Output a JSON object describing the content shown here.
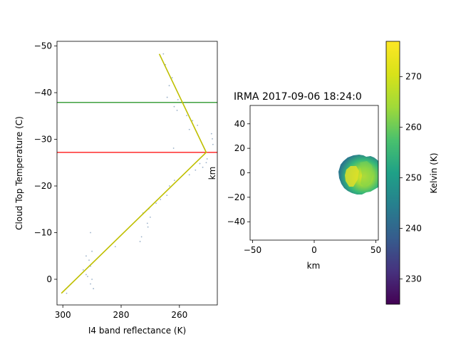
{
  "chart_data": [
    {
      "type": "scatter",
      "title": "",
      "xlabel": "I4 band reflectance (K)",
      "ylabel": "Cloud Top Temperature (C)",
      "xlim": [
        302,
        247
      ],
      "ylim": [
        5.5,
        -51
      ],
      "xticks": [
        300,
        280,
        260
      ],
      "xtick_labels": [
        "300",
        "280",
        "260"
      ],
      "yticks": [
        0,
        -10,
        -20,
        -30,
        -40,
        -50
      ],
      "ytick_labels": [
        "0",
        "−10",
        "−20",
        "−30",
        "−40",
        "−50"
      ],
      "hlines": [
        {
          "y": -37.9,
          "color": "#008000"
        },
        {
          "y": -27.2,
          "color": "#ff0000"
        }
      ],
      "fit_line": {
        "color": "#bfbf00",
        "points": [
          [
            300.5,
            3.0
          ],
          [
            250.8,
            -27.2
          ],
          [
            266.9,
            -48.3
          ]
        ]
      },
      "points_color": "#9ab0c8",
      "points": [
        [
          265.5,
          -48.3
        ],
        [
          264.8,
          -46.0
        ],
        [
          262.5,
          -43.2
        ],
        [
          263.5,
          -41.5
        ],
        [
          264.2,
          -39.0
        ],
        [
          260.5,
          -38.5
        ],
        [
          261.8,
          -37.0
        ],
        [
          260.8,
          -36.2
        ],
        [
          257.5,
          -35.1
        ],
        [
          255.5,
          -34.0
        ],
        [
          253.8,
          -33.0
        ],
        [
          256.6,
          -32.1
        ],
        [
          249.0,
          -31.2
        ],
        [
          248.7,
          -30.1
        ],
        [
          248.5,
          -28.9
        ],
        [
          262.0,
          -28.1
        ],
        [
          250.5,
          -25.8
        ],
        [
          250.8,
          -25.0
        ],
        [
          253.0,
          -24.8
        ],
        [
          252.0,
          -24.0
        ],
        [
          254.5,
          -23.4
        ],
        [
          256.6,
          -22.4
        ],
        [
          261.7,
          -21.2
        ],
        [
          263.4,
          -20.0
        ],
        [
          264.3,
          -18.0
        ],
        [
          266.5,
          -17.1
        ],
        [
          268.0,
          -16.3
        ],
        [
          270.5,
          -15.1
        ],
        [
          272.5,
          -14.2
        ],
        [
          270.0,
          -13.3
        ],
        [
          271.0,
          -12.0
        ],
        [
          270.8,
          -11.2
        ],
        [
          273.0,
          -9.1
        ],
        [
          273.5,
          -8.1
        ],
        [
          290.5,
          -10.0
        ],
        [
          282.0,
          -7.0
        ],
        [
          292.0,
          -5.0
        ],
        [
          291.0,
          -4.1
        ],
        [
          290.5,
          -2.8
        ],
        [
          290.0,
          -6.0
        ],
        [
          293.0,
          -2.0
        ],
        [
          292.0,
          -1.0
        ],
        [
          290.0,
          0.0
        ],
        [
          290.5,
          1.0
        ],
        [
          289.5,
          2.0
        ],
        [
          298.7,
          3.0
        ],
        [
          291.5,
          -0.6
        ]
      ]
    },
    {
      "type": "heatmap",
      "title": "IRMA 2017-09-06 18:24:0",
      "xlabel": "km",
      "ylabel": "km",
      "xlim": [
        -52,
        52
      ],
      "ylim": [
        -55,
        55
      ],
      "xticks": [
        -50,
        0,
        50
      ],
      "xtick_labels": [
        "−50",
        "0",
        "50"
      ],
      "yticks": [
        40,
        20,
        0,
        -20,
        -40
      ],
      "ytick_labels": [
        "40",
        "20",
        "0",
        "−20",
        "−40"
      ],
      "colormap": "viridis",
      "blob": {
        "center_km": [
          38,
          -2
        ],
        "radius_km": [
          19,
          15
        ],
        "range_K": [
          231,
          273
        ]
      },
      "colorbar": {
        "label": "Kelvin (K)",
        "range": [
          225,
          277
        ],
        "ticks": [
          230,
          240,
          250,
          260,
          270
        ],
        "tick_labels": [
          "230",
          "240",
          "250",
          "260",
          "270"
        ]
      }
    }
  ]
}
